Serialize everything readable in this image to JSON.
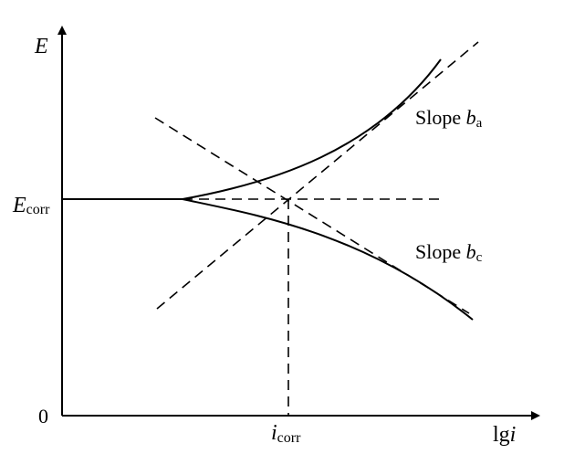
{
  "axes": {
    "y_axis_label": "E",
    "x_axis_label_main": "lg",
    "x_axis_label_italic": "i",
    "origin_label": "0"
  },
  "ticks": {
    "ecorr_main": "E",
    "ecorr_sub": "corr",
    "icorr_main": "i",
    "icorr_sub": "corr"
  },
  "annotations": {
    "anodic_prefix": "Slope ",
    "anodic_symbol": "b",
    "anodic_sub": "a",
    "cathodic_prefix": "Slope ",
    "cathodic_symbol": "b",
    "cathodic_sub": "c"
  }
}
